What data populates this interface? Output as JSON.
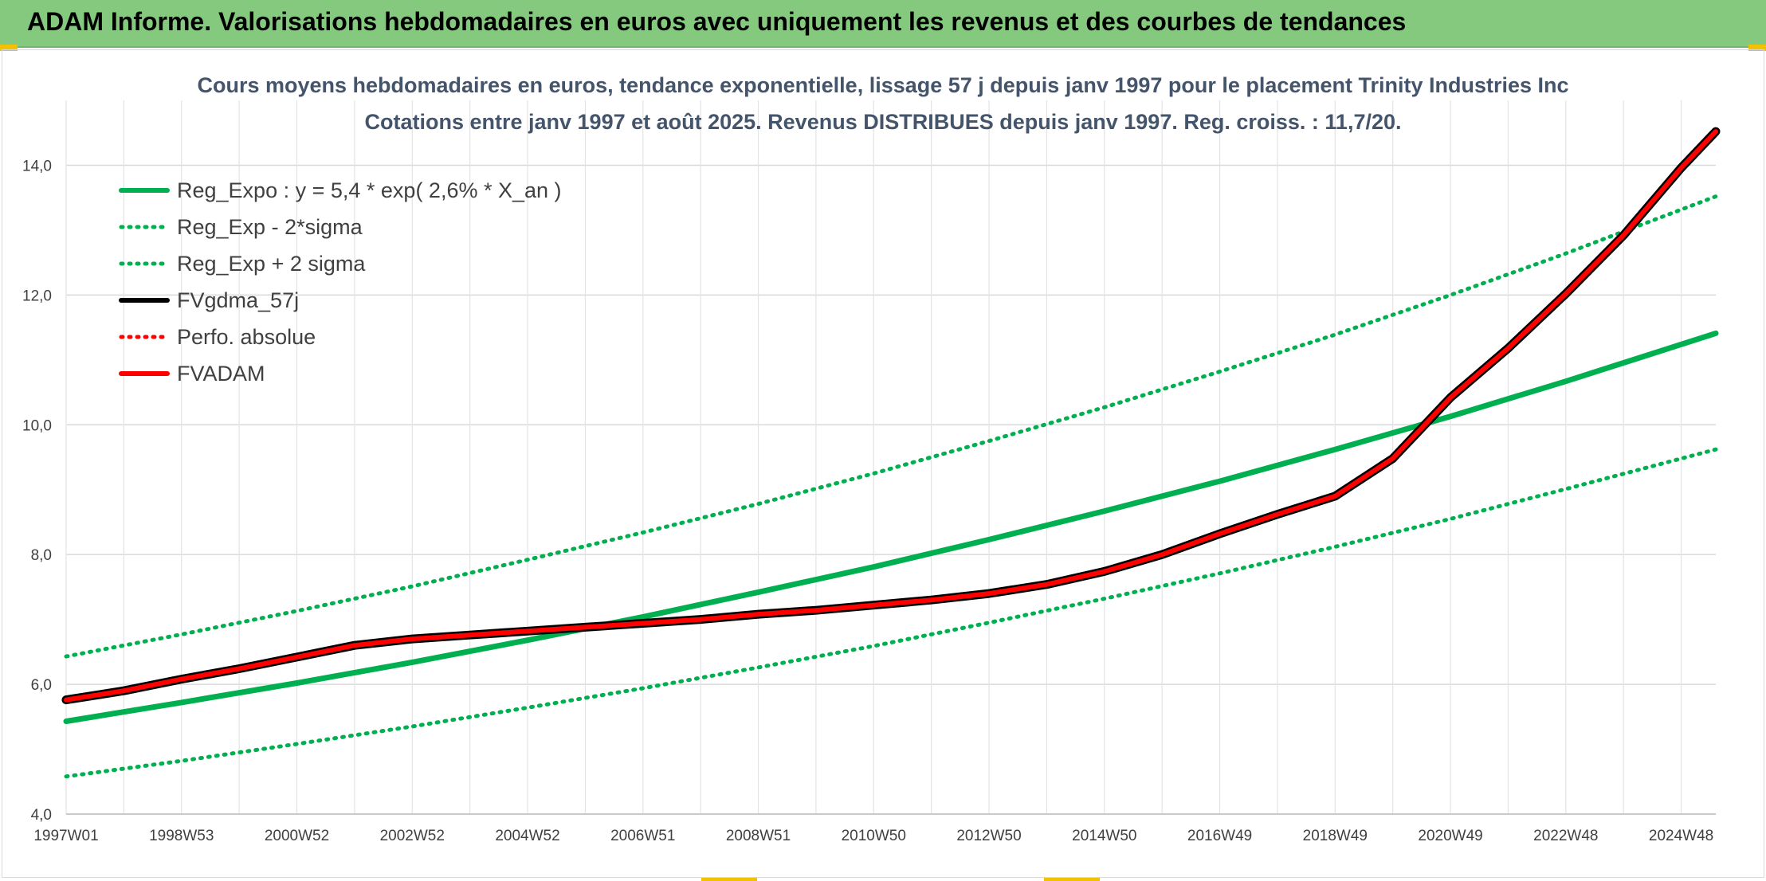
{
  "banner": {
    "title": "ADAM Informe. Valorisations hebdomadaires en euros avec uniquement les revenus et des courbes de tendances"
  },
  "chart_data": {
    "type": "line",
    "title": "Cours moyens hebdomadaires en euros, tendance exponentielle, lissage 57 j depuis janv 1997 pour le placement Trinity Industries Inc",
    "subtitle": "Cotations entre janv 1997 et août 2025. Revenus DISTRIBUES depuis janv 1997. Reg. croiss. : 11,7/20.",
    "xlabel": "",
    "ylabel": "",
    "ylim": [
      4.0,
      15.0
    ],
    "xlim": [
      1997.0,
      2025.6
    ],
    "yticks": [
      "4,0",
      "6,0",
      "8,0",
      "10,0",
      "12,0",
      "14,0"
    ],
    "xticks": [
      "1997W01",
      "1998W53",
      "2000W52",
      "2002W52",
      "2004W52",
      "2006W51",
      "2008W51",
      "2010W50",
      "2012W50",
      "2014W50",
      "2016W49",
      "2018W49",
      "2020W49",
      "2022W48",
      "2024W48"
    ],
    "grid": true,
    "legend_position": "top-left",
    "series": [
      {
        "name": "Reg_Expo : y = 5,4 * exp( 2,6% *  X_an )",
        "style": "solid",
        "color": "#00b050",
        "x": [
          1997,
          1999,
          2001,
          2003,
          2005,
          2007,
          2009,
          2011,
          2013,
          2015,
          2017,
          2019,
          2021,
          2023,
          2025.6
        ],
        "y": [
          5.43,
          5.72,
          6.02,
          6.34,
          6.68,
          7.04,
          7.42,
          7.81,
          8.23,
          8.67,
          9.13,
          9.62,
          10.13,
          10.67,
          11.41
        ]
      },
      {
        "name": "Reg_Exp - 2*sigma",
        "style": "dotted",
        "color": "#00b050",
        "x": [
          1997,
          1999,
          2001,
          2003,
          2005,
          2007,
          2009,
          2011,
          2013,
          2015,
          2017,
          2019,
          2021,
          2023,
          2025.6
        ],
        "y": [
          4.58,
          4.82,
          5.08,
          5.35,
          5.64,
          5.94,
          6.26,
          6.59,
          6.95,
          7.32,
          7.71,
          8.12,
          8.55,
          9.01,
          9.62
        ]
      },
      {
        "name": "Reg_Exp + 2 sigma",
        "style": "dotted",
        "color": "#00b050",
        "x": [
          1997,
          1999,
          2001,
          2003,
          2005,
          2007,
          2009,
          2011,
          2013,
          2015,
          2017,
          2019,
          2021,
          2023,
          2025.6
        ],
        "y": [
          6.43,
          6.77,
          7.13,
          7.51,
          7.92,
          8.34,
          8.78,
          9.25,
          9.75,
          10.27,
          10.82,
          11.39,
          12.0,
          12.64,
          13.52
        ]
      },
      {
        "name": "FVgdma_57j",
        "style": "solid",
        "color": "#000000",
        "x": [
          1997,
          1998,
          1999,
          2000,
          2001,
          2002,
          2003,
          2004,
          2005,
          2006,
          2007,
          2008,
          2009,
          2010,
          2011,
          2012,
          2013,
          2014,
          2015,
          2016,
          2017,
          2018,
          2019,
          2020,
          2021,
          2022,
          2023,
          2024,
          2025,
          2025.6
        ],
        "y": [
          5.76,
          5.9,
          6.08,
          6.24,
          6.42,
          6.6,
          6.7,
          6.76,
          6.82,
          6.88,
          6.94,
          7.0,
          7.08,
          7.14,
          7.22,
          7.3,
          7.4,
          7.54,
          7.74,
          8.0,
          8.32,
          8.62,
          8.9,
          9.48,
          10.42,
          11.18,
          12.02,
          12.92,
          13.96,
          14.52
        ]
      },
      {
        "name": "Perfo. absolue",
        "style": "dotted",
        "color": "#ff0000",
        "x": [
          1997,
          1998,
          1999,
          2000,
          2001,
          2002,
          2003,
          2004,
          2005,
          2006,
          2007,
          2008,
          2009,
          2010,
          2011,
          2012,
          2013,
          2014,
          2015,
          2016,
          2017,
          2018,
          2019,
          2020,
          2021,
          2022,
          2023,
          2024,
          2025,
          2025.6
        ],
        "y": [
          5.76,
          5.9,
          6.08,
          6.24,
          6.42,
          6.6,
          6.7,
          6.76,
          6.82,
          6.88,
          6.94,
          7.0,
          7.08,
          7.14,
          7.22,
          7.3,
          7.4,
          7.54,
          7.74,
          8.0,
          8.32,
          8.62,
          8.9,
          9.48,
          10.42,
          11.18,
          12.02,
          12.92,
          13.96,
          14.52
        ]
      },
      {
        "name": "FVADAM",
        "style": "solid",
        "color": "#ff0000",
        "x": [
          1997,
          1998,
          1999,
          2000,
          2001,
          2002,
          2003,
          2004,
          2005,
          2006,
          2007,
          2008,
          2009,
          2010,
          2011,
          2012,
          2013,
          2014,
          2015,
          2016,
          2017,
          2018,
          2019,
          2020,
          2021,
          2022,
          2023,
          2024,
          2025,
          2025.6
        ],
        "y": [
          5.76,
          5.9,
          6.08,
          6.24,
          6.42,
          6.6,
          6.7,
          6.76,
          6.82,
          6.88,
          6.94,
          7.0,
          7.08,
          7.14,
          7.22,
          7.3,
          7.4,
          7.54,
          7.74,
          8.0,
          8.32,
          8.62,
          8.9,
          9.48,
          10.42,
          11.18,
          12.02,
          12.92,
          13.96,
          14.52
        ]
      }
    ]
  }
}
